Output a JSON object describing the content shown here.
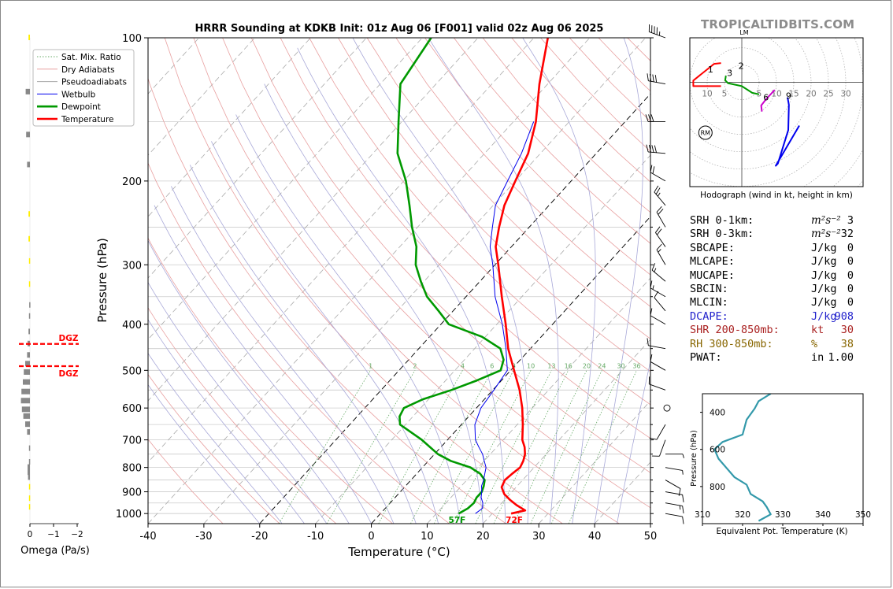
{
  "brand": "TROPICALTIDBITS.COM",
  "title": "HRRR Sounding at KDKB Init: 01z Aug 06 [F001] valid 02z Aug 06 2025",
  "colors": {
    "temperature": "#ff0000",
    "dewpoint": "#009900",
    "wetbulb": "#0000ee",
    "dry_adiabat": "#e8a0a0",
    "moist_adiabat": "#a8a8d8",
    "mixing_ratio": "#66aa66",
    "theta_e": "#3399aa",
    "dcape": "#2222cc",
    "shr": "#aa2222",
    "rh": "#886600"
  },
  "chart_data": [
    {
      "type": "line",
      "name": "skewt",
      "xlabel": "Temperature (°C)",
      "ylabel": "Pressure (hPa)",
      "xlim": [
        -40,
        50
      ],
      "ylim": [
        1050,
        100
      ],
      "xticks": [
        -40,
        -30,
        -20,
        -10,
        0,
        10,
        20,
        30,
        40,
        50
      ],
      "yticks": [
        100,
        200,
        300,
        400,
        500,
        600,
        700,
        800,
        900,
        1000
      ],
      "legend": {
        "placement": "top-left",
        "entries": [
          "Sat. Mix. Ratio",
          "Dry Adiabats",
          "Pseudoadiabats",
          "Wetbulb",
          "Dewpoint",
          "Temperature"
        ]
      },
      "mixing_ratio_labels": [
        "1",
        "2",
        "4",
        "6",
        "8",
        "10",
        "13",
        "16",
        "20",
        "24",
        "30",
        "36"
      ],
      "surface_labels": {
        "dewpoint": "57F",
        "temperature": "72F"
      },
      "series": [
        {
          "name": "Temperature",
          "points": [
            [
              23.4,
              1000
            ],
            [
              25.4,
              985
            ],
            [
              23.0,
              960
            ],
            [
              20.9,
              935
            ],
            [
              19.0,
              910
            ],
            [
              17.4,
              880
            ],
            [
              16.8,
              850
            ],
            [
              17.1,
              825
            ],
            [
              17.5,
              800
            ],
            [
              17.0,
              775
            ],
            [
              16.2,
              750
            ],
            [
              15.0,
              725
            ],
            [
              13.4,
              700
            ],
            [
              11.0,
              650
            ],
            [
              8.2,
              600
            ],
            [
              4.8,
              550
            ],
            [
              0.6,
              500
            ],
            [
              -4.0,
              450
            ],
            [
              -8.4,
              400
            ],
            [
              -13.6,
              350
            ],
            [
              -19.4,
              300
            ],
            [
              -22.8,
              275
            ],
            [
              -25.4,
              250
            ],
            [
              -28.0,
              225
            ],
            [
              -30.0,
              200
            ],
            [
              -32.2,
              175
            ],
            [
              -36.0,
              150
            ],
            [
              -41.5,
              125
            ],
            [
              -47.5,
              100
            ]
          ]
        },
        {
          "name": "Dewpoint",
          "points": [
            [
              14.0,
              1000
            ],
            [
              14.8,
              975
            ],
            [
              15.0,
              950
            ],
            [
              14.6,
              925
            ],
            [
              14.6,
              900
            ],
            [
              14.0,
              875
            ],
            [
              13.2,
              850
            ],
            [
              11.4,
              825
            ],
            [
              8.6,
              800
            ],
            [
              4.0,
              775
            ],
            [
              0.6,
              750
            ],
            [
              -4.6,
              700
            ],
            [
              -11.0,
              650
            ],
            [
              -12.4,
              625
            ],
            [
              -13.0,
              600
            ],
            [
              -11.0,
              575
            ],
            [
              -7.4,
              550
            ],
            [
              -4.4,
              525
            ],
            [
              -1.8,
              500
            ],
            [
              -3.0,
              475
            ],
            [
              -5.4,
              450
            ],
            [
              -10.6,
              425
            ],
            [
              -18.6,
              400
            ],
            [
              -22.6,
              375
            ],
            [
              -27.0,
              350
            ],
            [
              -30.6,
              325
            ],
            [
              -34.2,
              300
            ],
            [
              -37.0,
              275
            ],
            [
              -41.0,
              250
            ],
            [
              -45.0,
              225
            ],
            [
              -49.6,
              200
            ],
            [
              -55.6,
              175
            ],
            [
              -60.6,
              150
            ],
            [
              -66.4,
              125
            ],
            [
              -68.4,
              100
            ]
          ]
        },
        {
          "name": "Wetbulb",
          "points": [
            [
              17.0,
              1000
            ],
            [
              17.4,
              975
            ],
            [
              16.6,
              950
            ],
            [
              15.4,
              925
            ],
            [
              14.6,
              900
            ],
            [
              13.6,
              875
            ],
            [
              13.0,
              850
            ],
            [
              12.2,
              825
            ],
            [
              11.4,
              800
            ],
            [
              10.0,
              775
            ],
            [
              8.6,
              750
            ],
            [
              6.8,
              725
            ],
            [
              5.0,
              700
            ],
            [
              2.4,
              650
            ],
            [
              0.8,
              600
            ],
            [
              0.2,
              550
            ],
            [
              -0.6,
              500
            ],
            [
              -4.4,
              450
            ],
            [
              -9.0,
              400
            ],
            [
              -14.8,
              350
            ],
            [
              -20.4,
              300
            ],
            [
              -23.8,
              275
            ],
            [
              -26.6,
              250
            ],
            [
              -29.6,
              225
            ],
            [
              -31.4,
              200
            ],
            [
              -33.4,
              175
            ],
            [
              -36.4,
              150
            ]
          ]
        }
      ]
    },
    {
      "type": "line",
      "name": "hodograph",
      "title": "Hodograph (wind in kt, height in km)",
      "xlim": [
        -15,
        35
      ],
      "ylim": [
        -28,
        12
      ],
      "ring_labels": [
        "10",
        "5",
        "5",
        "10",
        "15",
        "20",
        "25",
        "30"
      ],
      "storm_motion_label": "RM",
      "left_mover_label": "LM",
      "height_labels": [
        {
          "label": "1",
          "u": -9,
          "v": 3.5
        },
        {
          "label": "2",
          "u": -0.2,
          "v": 4.5
        },
        {
          "label": "3",
          "u": -3.5,
          "v": 2.6
        },
        {
          "label": "6",
          "u": 7,
          "v": -4
        },
        {
          "label": "9",
          "u": 13.5,
          "v": -3.6
        }
      ],
      "series": [
        {
          "name": "0-1 km",
          "color": "#ff0000",
          "points": [
            [
              -6,
              5.2
            ],
            [
              -8,
              5.0
            ],
            [
              -14,
              0.5
            ],
            [
              -14,
              -1
            ],
            [
              -6,
              -1
            ]
          ]
        },
        {
          "name": "1-3 km",
          "color": "#009900",
          "points": [
            [
              -4.6,
              1.8
            ],
            [
              -4.8,
              0.6
            ],
            [
              -4,
              -0.2
            ],
            [
              0,
              -1
            ],
            [
              3,
              -2.8
            ],
            [
              5,
              -3.2
            ]
          ]
        },
        {
          "name": "3-6 km",
          "color": "#cc00cc",
          "points": [
            [
              9.5,
              -2
            ],
            [
              7,
              -4.5
            ],
            [
              5.6,
              -6.2
            ],
            [
              5.8,
              -7.8
            ]
          ]
        },
        {
          "name": "6-12 km",
          "color": "#0000ee",
          "points": [
            [
              13.2,
              -4
            ],
            [
              13.6,
              -6
            ],
            [
              13.4,
              -12.8
            ],
            [
              10.4,
              -21.8
            ],
            [
              9.8,
              -22.4
            ],
            [
              16.6,
              -11.6
            ]
          ]
        }
      ]
    },
    {
      "type": "line",
      "name": "theta-e profile",
      "xlabel": "Equivalent Pot. Temperature (K)",
      "ylabel": "Pressure (hPa)",
      "xlim": [
        310,
        350
      ],
      "ylim": [
        1000,
        300
      ],
      "xticks": [
        "310",
        "320",
        "330",
        "340",
        "350"
      ],
      "yticks": [
        "400",
        "600",
        "800"
      ],
      "series": [
        {
          "name": "theta-e",
          "points": [
            [
              327,
              300
            ],
            [
              324,
              340
            ],
            [
              323,
              380
            ],
            [
              321,
              440
            ],
            [
              320,
              520
            ],
            [
              315,
              560
            ],
            [
              313,
              600
            ],
            [
              314,
              650
            ],
            [
              316,
              700
            ],
            [
              318,
              750
            ],
            [
              321,
              790
            ],
            [
              322,
              840
            ],
            [
              325,
              880
            ],
            [
              326,
              910
            ],
            [
              327,
              950
            ],
            [
              324,
              985
            ]
          ]
        }
      ]
    },
    {
      "type": "bar",
      "name": "omega profile",
      "xlabel": "Omega (Pa/s)",
      "xticks": [
        "0",
        "−1",
        "−2"
      ],
      "dgz_label": "DGZ",
      "dgz_pressures": [
        440,
        490
      ],
      "bars": [
        {
          "p": 100,
          "w": 0.06,
          "color": "#ffee00"
        },
        {
          "p": 130,
          "w": 0.18,
          "color": "#888888"
        },
        {
          "p": 160,
          "w": 0.16,
          "color": "#888888"
        },
        {
          "p": 185,
          "w": 0.12,
          "color": "#888888"
        },
        {
          "p": 235,
          "w": 0.06,
          "color": "#ffee00"
        },
        {
          "p": 265,
          "w": 0.06,
          "color": "#ffee00"
        },
        {
          "p": 295,
          "w": 0.04,
          "color": "#ffee00"
        },
        {
          "p": 330,
          "w": 0.04,
          "color": "#ffee00"
        },
        {
          "p": 365,
          "w": 0.03,
          "color": "#888888"
        },
        {
          "p": 385,
          "w": 0.04,
          "color": "#888888"
        },
        {
          "p": 415,
          "w": 0.06,
          "color": "#888888"
        },
        {
          "p": 440,
          "w": 0.1,
          "color": "#888888"
        },
        {
          "p": 465,
          "w": 0.12,
          "color": "#888888"
        },
        {
          "p": 485,
          "w": 0.2,
          "color": "#888888"
        },
        {
          "p": 505,
          "w": 0.26,
          "color": "#888888"
        },
        {
          "p": 530,
          "w": 0.3,
          "color": "#888888"
        },
        {
          "p": 555,
          "w": 0.36,
          "color": "#888888"
        },
        {
          "p": 580,
          "w": 0.38,
          "color": "#888888"
        },
        {
          "p": 605,
          "w": 0.34,
          "color": "#888888"
        },
        {
          "p": 625,
          "w": 0.28,
          "color": "#888888"
        },
        {
          "p": 650,
          "w": 0.2,
          "color": "#888888"
        },
        {
          "p": 675,
          "w": 0.12,
          "color": "#888888"
        },
        {
          "p": 730,
          "w": 0.04,
          "color": "#888888"
        },
        {
          "p": 780,
          "w": 0.04,
          "color": "#888888"
        },
        {
          "p": 800,
          "w": 0.1,
          "color": "#888888"
        },
        {
          "p": 820,
          "w": 0.1,
          "color": "#888888"
        },
        {
          "p": 840,
          "w": 0.08,
          "color": "#888888"
        },
        {
          "p": 880,
          "w": 0.04,
          "color": "#ffee00"
        },
        {
          "p": 930,
          "w": 0.04,
          "color": "#ffee00"
        },
        {
          "p": 970,
          "w": 0.04,
          "color": "#ffee00"
        }
      ]
    }
  ],
  "stats": [
    {
      "key": "srh01",
      "label": "SRH 0-1km:",
      "value": "3",
      "unit": "m²s⁻²",
      "color": "#000000"
    },
    {
      "key": "srh03",
      "label": "SRH 0-3km:",
      "value": "32",
      "unit": "m²s⁻²",
      "color": "#000000"
    },
    {
      "key": "sbcape",
      "label": "SBCAPE:",
      "value": "0",
      "unit": "J/kg",
      "color": "#000000"
    },
    {
      "key": "mlcape",
      "label": "MLCAPE:",
      "value": "0",
      "unit": "J/kg",
      "color": "#000000"
    },
    {
      "key": "mucape",
      "label": "MUCAPE:",
      "value": "0",
      "unit": "J/kg",
      "color": "#000000"
    },
    {
      "key": "sbcin",
      "label": "SBCIN:",
      "value": "0",
      "unit": "J/kg",
      "color": "#000000"
    },
    {
      "key": "mlcin",
      "label": "MLCIN:",
      "value": "0",
      "unit": "J/kg",
      "color": "#000000"
    },
    {
      "key": "dcape",
      "label": "DCAPE:",
      "value": "908",
      "unit": "J/kg",
      "color": "#2222cc"
    },
    {
      "key": "shr",
      "label": "SHR 200-850mb:",
      "value": "30",
      "unit": "kt",
      "color": "#aa2222"
    },
    {
      "key": "rh",
      "label": "RH 300-850mb:",
      "value": "38",
      "unit": "%",
      "color": "#886600"
    },
    {
      "key": "pwat",
      "label": "PWAT:",
      "value": "1.00",
      "unit": "in",
      "color": "#000000"
    }
  ],
  "wind_barbs": [
    {
      "p": 100,
      "spd": 45,
      "dir": 290
    },
    {
      "p": 125,
      "spd": 40,
      "dir": 280
    },
    {
      "p": 150,
      "spd": 30,
      "dir": 270
    },
    {
      "p": 175,
      "spd": 40,
      "dir": 275
    },
    {
      "p": 200,
      "spd": 20,
      "dir": 300
    },
    {
      "p": 225,
      "spd": 25,
      "dir": 320
    },
    {
      "p": 250,
      "spd": 20,
      "dir": 330
    },
    {
      "p": 275,
      "spd": 20,
      "dir": 325
    },
    {
      "p": 300,
      "spd": 15,
      "dir": 330
    },
    {
      "p": 325,
      "spd": 15,
      "dir": 310
    },
    {
      "p": 350,
      "spd": 15,
      "dir": 300
    },
    {
      "p": 375,
      "spd": 10,
      "dir": 320
    },
    {
      "p": 400,
      "spd": 10,
      "dir": 300
    },
    {
      "p": 450,
      "spd": 10,
      "dir": 280
    },
    {
      "p": 500,
      "spd": 10,
      "dir": 300
    },
    {
      "p": 550,
      "spd": 10,
      "dir": 290
    },
    {
      "p": 600,
      "spd": 0,
      "dir": 0
    },
    {
      "p": 650,
      "spd": 10,
      "dir": 210
    },
    {
      "p": 700,
      "spd": 10,
      "dir": 200
    },
    {
      "p": 750,
      "spd": 5,
      "dir": 90
    },
    {
      "p": 800,
      "spd": 5,
      "dir": 100
    },
    {
      "p": 850,
      "spd": 10,
      "dir": 120
    },
    {
      "p": 900,
      "spd": 10,
      "dir": 100
    },
    {
      "p": 950,
      "spd": 15,
      "dir": 100
    },
    {
      "p": 1000,
      "spd": 10,
      "dir": 100
    }
  ]
}
